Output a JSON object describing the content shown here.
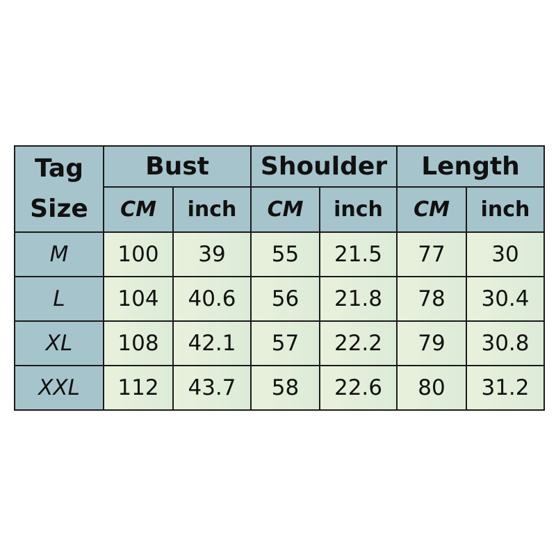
{
  "header": {
    "tag_line1": "Tag",
    "tag_line2": "Size",
    "groups": [
      "Bust",
      "Shoulder",
      "Length"
    ],
    "units": [
      "CM",
      "inch",
      "CM",
      "inch",
      "CM",
      "inch"
    ]
  },
  "rows": [
    {
      "size": "M",
      "values": [
        "100",
        "39",
        "55",
        "21.5",
        "77",
        "30"
      ]
    },
    {
      "size": "L",
      "values": [
        "104",
        "40.6",
        "56",
        "21.8",
        "78",
        "30.4"
      ]
    },
    {
      "size": "XL",
      "values": [
        "108",
        "42.1",
        "57",
        "22.2",
        "79",
        "30.8"
      ]
    },
    {
      "size": "XXL",
      "values": [
        "112",
        "43.7",
        "58",
        "22.6",
        "80",
        "31.2"
      ]
    }
  ],
  "colors": {
    "header": "#a6c4cc",
    "cell": "#e6f0da",
    "border": "#1a1a1a"
  }
}
